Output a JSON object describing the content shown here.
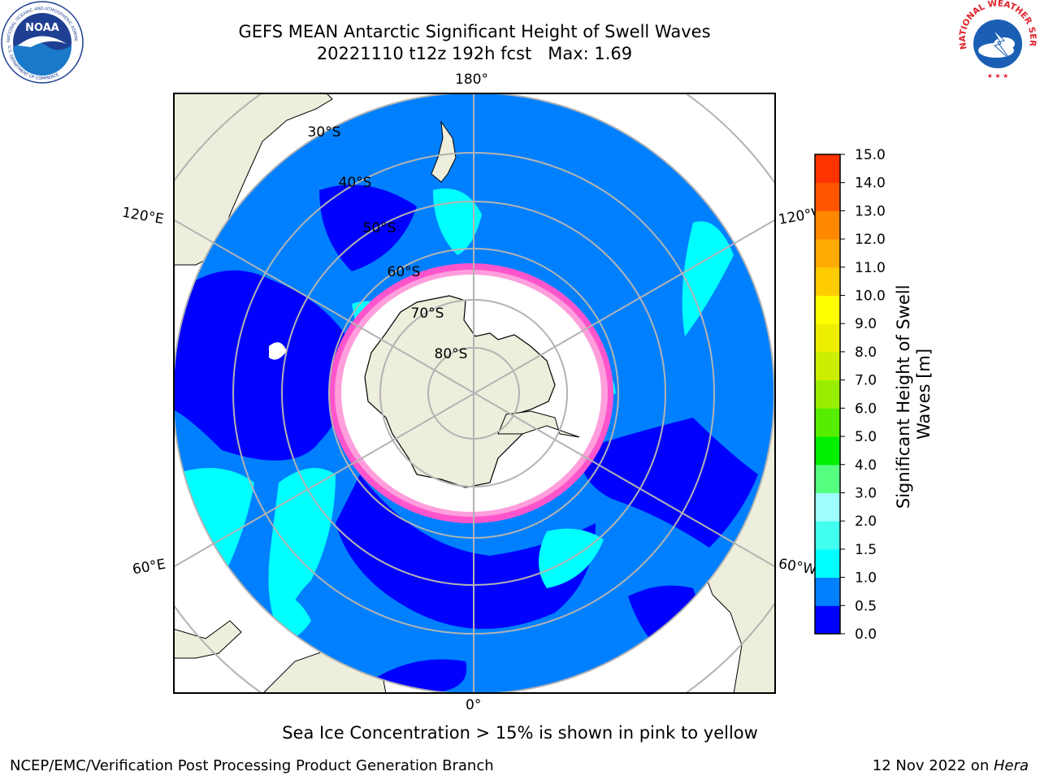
{
  "title": {
    "line1": "GEFS MEAN Antarctic Significant Height of Swell Waves",
    "line2": "20221110 t12z 192h fcst   Max: 1.69"
  },
  "logos": {
    "left": {
      "name": "NOAA",
      "ring_text": "NATIONAL OCEANIC AND ATMOSPHERIC ADMINISTRATION",
      "ring_text_bottom": "U.S. DEPARTMENT OF COMMERCE",
      "colors": [
        "#1f3f93",
        "#1a79c8",
        "#ffffff"
      ]
    },
    "right": {
      "ring_text": "NATIONAL WEATHER SERVICE",
      "colors": [
        "#e0202a",
        "#1a5fb4",
        "#ffffff"
      ]
    }
  },
  "map": {
    "projection": "south-polar-stereographic",
    "lon_labels": {
      "top": "180°",
      "bottom": "0°",
      "left_upper": "120°E",
      "left_lower": "60°E",
      "right_upper": "120°W",
      "right_lower": "60°W"
    },
    "lat_labels": [
      "30°S",
      "40°S",
      "50°S",
      "60°S",
      "70°S",
      "80°S"
    ],
    "colors": {
      "land": "#eeeedc",
      "ocean_low": "#0000ff",
      "ocean_mid": "#0080ff",
      "swell_high": "#00ffff",
      "ice": "#ffffff",
      "ice_edge": "#ff55cc",
      "grid": "#b3b3b3"
    }
  },
  "colorbar": {
    "ticks": [
      "0.0",
      "0.5",
      "1.0",
      "1.5",
      "2.0",
      "3.0",
      "4.0",
      "5.0",
      "6.0",
      "7.0",
      "8.0",
      "9.0",
      "10.0",
      "11.0",
      "12.0",
      "13.0",
      "14.0",
      "15.0"
    ],
    "colors": [
      "#0000ff",
      "#0080ff",
      "#00ffff",
      "#40ffee",
      "#9fffff",
      "#55ff80",
      "#00ee00",
      "#55ee00",
      "#99ee00",
      "#ccee00",
      "#eeee00",
      "#ffff00",
      "#ffcc00",
      "#ffaa00",
      "#ff8800",
      "#ff5500",
      "#ff3300",
      "#ff0000"
    ],
    "label_line1": "Significant Height of Swell",
    "label_line2": "Waves [m]"
  },
  "note": "Sea Ice Concentration > 15% is shown in pink to yellow",
  "footer": {
    "left": "NCEP/EMC/Verification Post Processing Product Generation Branch",
    "right_prefix": "12 Nov 2022 on ",
    "right_italic": "Hera"
  }
}
